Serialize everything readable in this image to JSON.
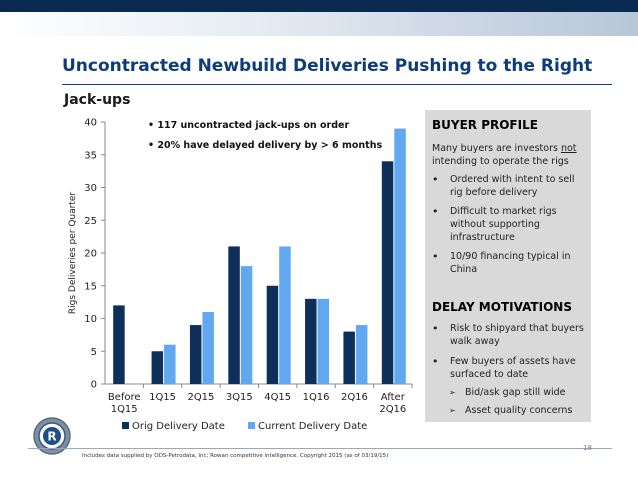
{
  "slide": {
    "title": "Uncontracted Newbuild Deliveries Pushing to the Right",
    "subtitle": "Jack-ups",
    "page_number": "18",
    "source_note": "Includes data supplied by ODS-Petrodata, Inc; Rowan competitive intelligence.  Copyright 2015 (as of 03/19/15)",
    "logo_letter": "R"
  },
  "chart_data": {
    "type": "bar",
    "categories": [
      [
        "Before",
        "1Q15"
      ],
      [
        "1Q15"
      ],
      [
        "2Q15"
      ],
      [
        "3Q15"
      ],
      [
        "4Q15"
      ],
      [
        "1Q16"
      ],
      [
        "2Q16"
      ],
      [
        "After",
        "2Q16"
      ]
    ],
    "series": [
      {
        "name": "Orig Delivery Date",
        "values": [
          12,
          5,
          9,
          21,
          15,
          13,
          8,
          34
        ],
        "color": "#0e2f5a"
      },
      {
        "name": "Current Delivery Date",
        "values": [
          0,
          6,
          11,
          18,
          21,
          13,
          9,
          39
        ],
        "color": "#62a8f0"
      }
    ],
    "ylabel": "Rigs Deliveries per Quarter",
    "ylim": [
      0,
      40
    ],
    "yticks": [
      0,
      5,
      10,
      15,
      20,
      25,
      30,
      35,
      40
    ],
    "grid": false,
    "legend_position": "bottom",
    "annotations": [
      "117 uncontracted jack-ups on order",
      "20% have delayed delivery by > 6 months"
    ]
  },
  "panel": {
    "buyer_heading": "BUYER PROFILE",
    "buyer_intro_1": "Many buyers are investors ",
    "buyer_intro_not": "not",
    "buyer_intro_2": "intending to operate the rigs",
    "buyer_bullets": [
      "Ordered with intent to sell rig before delivery",
      "Difficult to market rigs without supporting infrastructure",
      "10/90 financing typical in China"
    ],
    "delay_heading": "DELAY MOTIVATIONS",
    "delay_bullets": [
      "Risk to shipyard that buyers walk away",
      "Few buyers of assets have surfaced to date"
    ],
    "delay_sub": [
      "Bid/ask gap still wide",
      "Asset quality concerns"
    ]
  }
}
